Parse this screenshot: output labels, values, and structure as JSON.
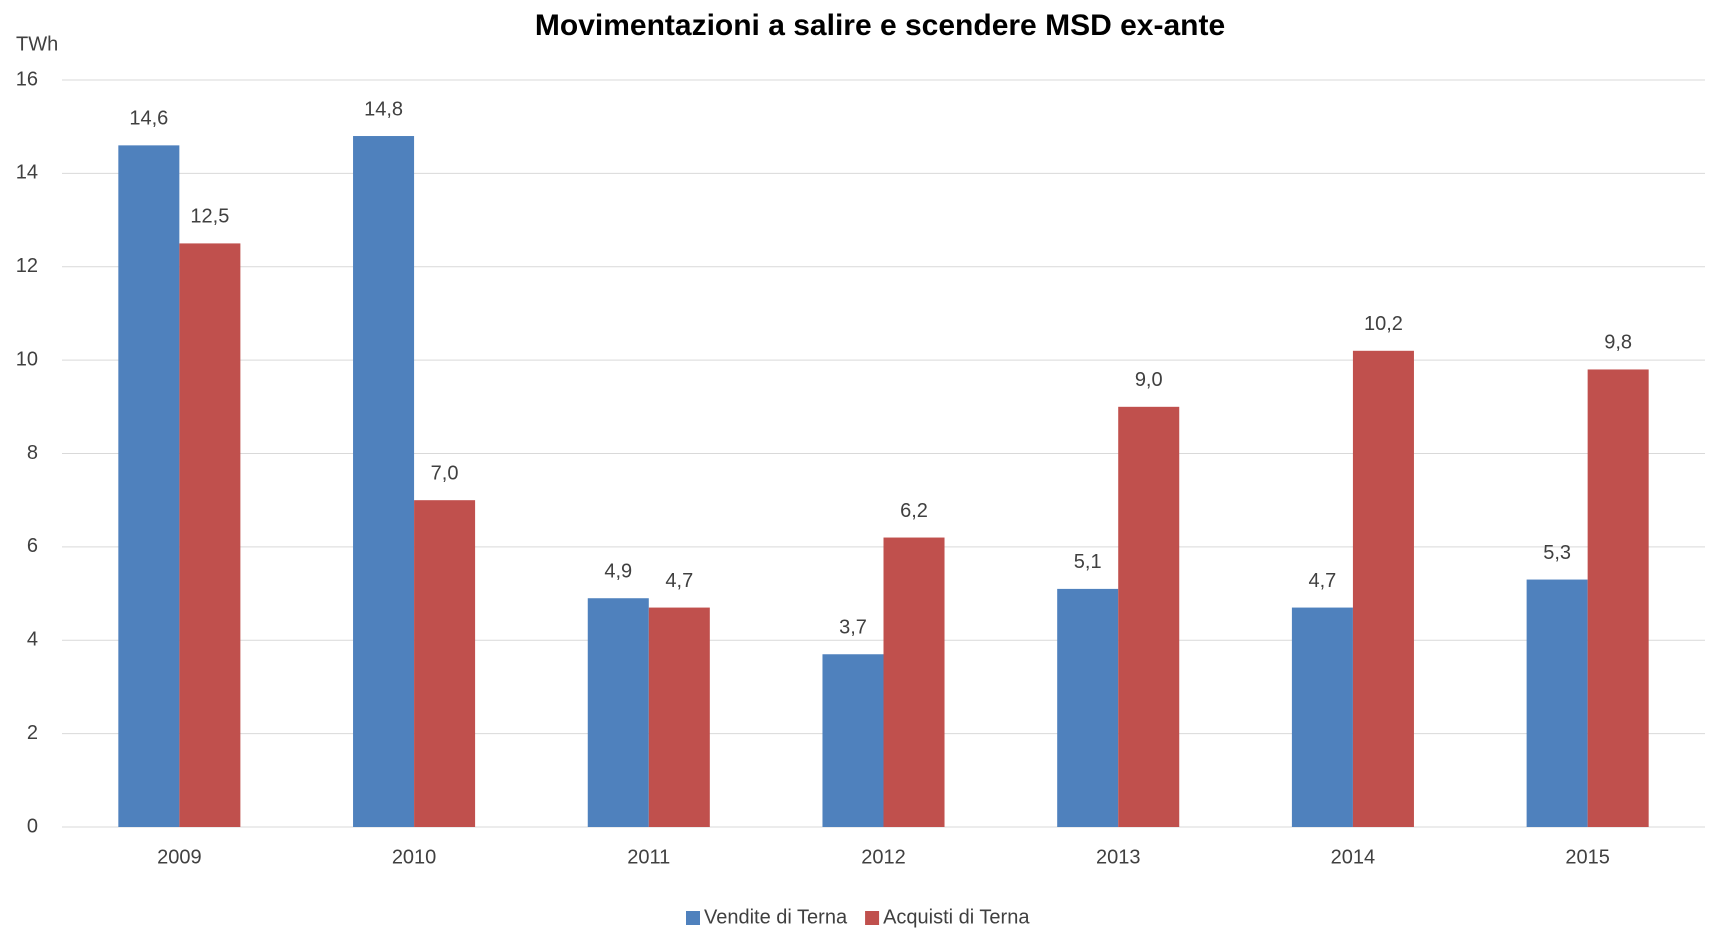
{
  "chart_data": {
    "type": "bar",
    "title": "Movimentazioni a salire e scendere MSD ex-ante",
    "y_axis_label": "TWh",
    "categories": [
      "2009",
      "2010",
      "2011",
      "2012",
      "2013",
      "2014",
      "2015"
    ],
    "series": [
      {
        "name": "Vendite di Terna",
        "color": "#4f81bd",
        "values": [
          14.6,
          14.8,
          4.9,
          3.7,
          5.1,
          4.7,
          5.3
        ],
        "value_labels": [
          "14,6",
          "14,8",
          "4,9",
          "3,7",
          "5,1",
          "4,7",
          "5,3"
        ]
      },
      {
        "name": "Acquisti di Terna",
        "color": "#c0504d",
        "values": [
          12.5,
          7.0,
          4.7,
          6.2,
          9.0,
          10.2,
          9.8
        ],
        "value_labels": [
          "12,5",
          "7,0",
          "4,7",
          "6,2",
          "9,0",
          "10,2",
          "9,8"
        ]
      }
    ],
    "ylim": [
      0,
      16
    ],
    "yticks": [
      0,
      2,
      4,
      6,
      8,
      10,
      12,
      14,
      16
    ],
    "grid": true,
    "legend": "bottom"
  }
}
